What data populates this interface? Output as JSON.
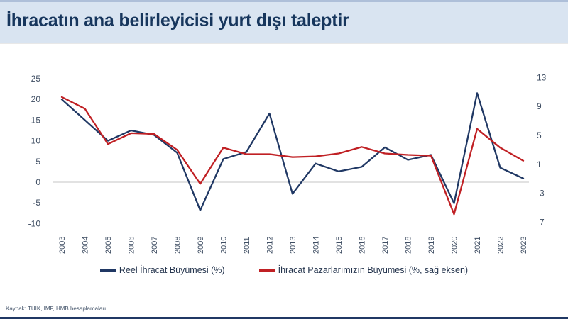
{
  "header": {
    "title": "İhracatın ana belirleyicisi yurt dışı taleptir"
  },
  "footer": {
    "source": "Kaynak: TÜİK, IMF, HMB hesaplamaları"
  },
  "colors": {
    "header_bg": "#d9e4f1",
    "title_text": "#17365d",
    "series_blue": "#203864",
    "series_red": "#c02024",
    "gridline": "#d9d9d9",
    "axis_text": "#3f4e63",
    "bottom_bar": "#203864"
  },
  "chart_data": {
    "type": "line",
    "title": "",
    "xlabel": "",
    "ylabel": "",
    "categories": [
      "2003",
      "2004",
      "2005",
      "2006",
      "2007",
      "2008",
      "2009",
      "2010",
      "2011",
      "2012",
      "2013",
      "2014",
      "2015",
      "2016",
      "2017",
      "2018",
      "2019",
      "2020",
      "2021",
      "2022",
      "2023"
    ],
    "series": [
      {
        "name": "Reel İhracat Büyümesi (%)",
        "axis": "left",
        "color": "#203864",
        "values": [
          20,
          15,
          10,
          12.5,
          11.4,
          7.1,
          -6.8,
          5.6,
          7.3,
          16.6,
          -2.8,
          4.5,
          2.6,
          3.7,
          8.4,
          5.4,
          6.6,
          -5.1,
          21.5,
          3.5,
          0.9
        ]
      },
      {
        "name": "İhracat Pazarlarımızın Büyümesi (%, sağ eksen)",
        "axis": "right",
        "color": "#c02024",
        "values": [
          10.3,
          8.7,
          3.8,
          5.3,
          5.2,
          3.0,
          -1.7,
          3.3,
          2.4,
          2.4,
          2.0,
          2.1,
          2.5,
          3.4,
          2.5,
          2.3,
          2.2,
          -5.9,
          5.9,
          3.3,
          1.5
        ]
      }
    ],
    "left_axis": {
      "ticks": [
        25,
        20,
        15,
        10,
        5,
        0,
        -5,
        -10
      ],
      "min": -10,
      "max": 25
    },
    "right_axis": {
      "ticks": [
        13,
        9,
        5,
        1,
        -3,
        -7
      ],
      "min": -7,
      "max": 13
    },
    "gridlines": [
      0
    ],
    "legend_position": "bottom"
  }
}
